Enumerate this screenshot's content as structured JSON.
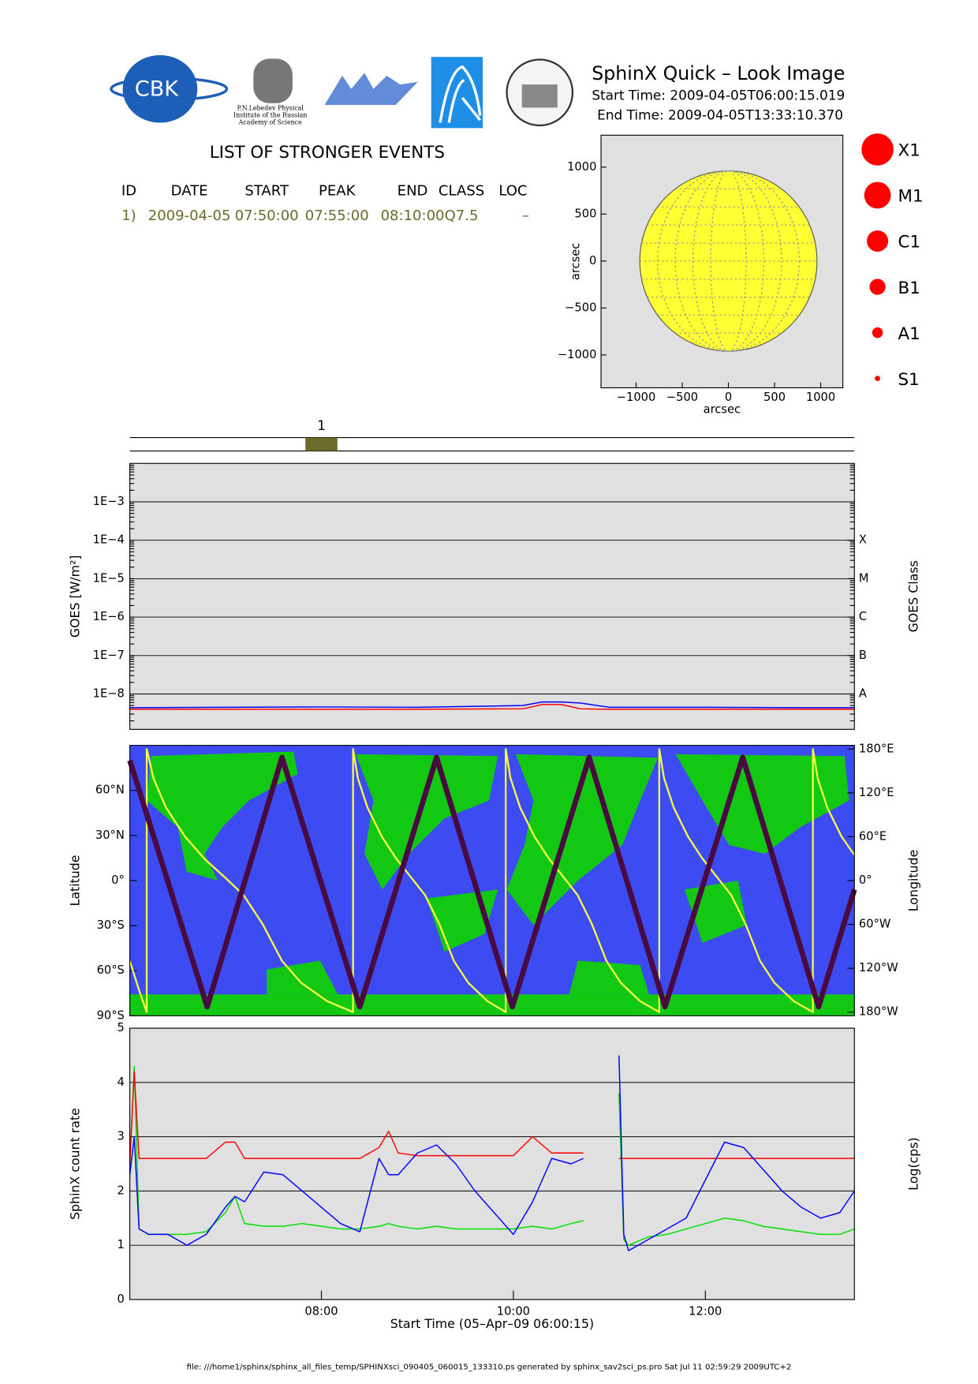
{
  "header": {
    "title": "SphinX Quick – Look Image",
    "start": "Start Time: 2009-04-05T06:00:15.019",
    "end": "End Time: 2009-04-05T13:33:10.370",
    "logo_cbk": "CBK",
    "lebedev": [
      "P.N.Lebedev Physical",
      "Institute of the Russian",
      "Academy of Science"
    ]
  },
  "events": {
    "title": "LIST OF STRONGER EVENTS",
    "header": [
      "ID",
      "DATE",
      "START",
      "PEAK",
      "END",
      "CLASS",
      "LOC"
    ],
    "rows": [
      [
        "1)",
        "2009-04-05",
        "07:50:00",
        "07:55:00",
        "08:10:00",
        "Q7.5",
        "–"
      ]
    ],
    "markers": [
      "1"
    ],
    "color": "#6b6b2a"
  },
  "footer": "file: ///home1/sphinx/sphinx_all_files_temp/SPHINXsci_090405_060015_133310.ps generated by sphinx_sav2sci_ps.pro Sat Jul 11 02:59:29 2009UTC+2",
  "chart_data": [
    {
      "type": "disk",
      "xlabel": "arcsec",
      "ylabel": "arcsec",
      "xlim": [
        -1380,
        1240
      ],
      "ylim": [
        -1350,
        1340
      ],
      "xticks": [
        {
          "value": -1000,
          "label": "−1000"
        },
        {
          "value": -500,
          "label": "−500"
        },
        0,
        500,
        1000
      ],
      "yticks": [
        {
          "value": -1000,
          "label": "−1000"
        },
        {
          "value": -500,
          "label": "−500"
        },
        0,
        500,
        1000
      ],
      "disk_radius": 960,
      "color": "#ffff33",
      "legend": [
        "X1",
        "M1",
        "C1",
        "B1",
        "A1",
        "S1"
      ],
      "legend_color": "#ff0000"
    },
    {
      "type": "line",
      "ylabel": "GOES [W/m²]",
      "y2label": "GOES Class",
      "log_y": true,
      "grid": true,
      "xlim": [
        6.004,
        13.553
      ],
      "ylim": [
        1.2e-09,
        0.01
      ],
      "y2lim": [
        1.2e-09,
        0.01
      ],
      "yticks": [
        {
          "value": 0.001,
          "label": "1E−3"
        },
        {
          "value": 0.0001,
          "label": "1E−4"
        },
        {
          "value": 1e-05,
          "label": "1E−5"
        },
        {
          "value": 1e-06,
          "label": "1E−6"
        },
        {
          "value": 1e-07,
          "label": "1E−7"
        },
        {
          "value": 1e-08,
          "label": "1E−8"
        }
      ],
      "y2ticks": [
        {
          "value": 0.0001,
          "label": "X"
        },
        {
          "value": 1e-05,
          "label": "M"
        },
        {
          "value": 1e-06,
          "label": "C"
        },
        {
          "value": 1e-07,
          "label": "B"
        },
        {
          "value": 1e-08,
          "label": "A"
        }
      ],
      "x": [
        6.004,
        7,
        8,
        9,
        10.1,
        10.3,
        10.5,
        10.7,
        11,
        12,
        13,
        13.553
      ],
      "series": [
        {
          "color": "#0000ff",
          "values": [
            4.4e-09,
            4.5e-09,
            4.6e-09,
            4.5e-09,
            5e-09,
            6.2e-09,
            6.2e-09,
            5.8e-09,
            4.5e-09,
            4.5e-09,
            4.4e-09,
            4.4e-09
          ]
        },
        {
          "color": "#ff0000",
          "values": [
            4e-09,
            4e-09,
            4e-09,
            4e-09,
            4.1e-09,
            5.3e-09,
            5.3e-09,
            4.1e-09,
            4e-09,
            4e-09,
            4e-09,
            4e-09
          ]
        }
      ]
    },
    {
      "type": "line",
      "ylabel": "Latitude",
      "y2label": "Longitude",
      "xlim": [
        6.004,
        13.553
      ],
      "ylim": [
        -90,
        90
      ],
      "y2lim": [
        -185,
        185
      ],
      "yticks": [
        {
          "value": 60,
          "label": "60°N"
        },
        {
          "value": 30,
          "label": "30°N"
        },
        {
          "value": 0,
          "label": "0°"
        },
        {
          "value": -30,
          "label": "30°S"
        },
        {
          "value": -60,
          "label": "60°S"
        },
        {
          "value": -90,
          "label": "90°S"
        }
      ],
      "y2ticks": [
        {
          "value": 180,
          "label": "180°E"
        },
        {
          "value": 120,
          "label": "120°E"
        },
        {
          "value": 60,
          "label": "60°E"
        },
        {
          "value": 0,
          "label": "0°"
        },
        {
          "value": -60,
          "label": "60°W"
        },
        {
          "value": -120,
          "label": "120°W"
        },
        {
          "value": -180,
          "label": "180°W"
        }
      ],
      "series": [
        {
          "color": "#ffff40",
          "axis": "y2",
          "x": [
            6.004,
            6.1,
            6.18,
            6.18,
            6.25,
            6.38,
            6.58,
            6.78,
            6.99,
            7.19,
            7.39,
            7.59,
            7.79,
            8.06,
            8.33,
            8.33,
            8.38,
            8.48,
            8.63,
            8.78,
            8.93,
            9.08,
            9.23,
            9.38,
            9.53,
            9.73,
            9.92,
            9.92,
            9.97,
            10.07,
            10.22,
            10.37,
            10.52,
            10.67,
            10.82,
            10.97,
            11.12,
            11.32,
            11.52,
            11.52,
            11.57,
            11.67,
            11.82,
            11.97,
            12.12,
            12.27,
            12.42,
            12.57,
            12.72,
            12.92,
            13.12,
            13.12,
            13.17,
            13.27,
            13.42,
            13.553
          ],
          "values": [
            -110,
            -150,
            -180,
            180,
            140,
            100,
            60,
            30,
            5,
            -20,
            -60,
            -110,
            -140,
            -165,
            -180,
            180,
            140,
            100,
            60,
            30,
            5,
            -20,
            -60,
            -110,
            -140,
            -165,
            -180,
            180,
            140,
            100,
            60,
            30,
            5,
            -20,
            -60,
            -110,
            -140,
            -165,
            -180,
            180,
            140,
            100,
            60,
            30,
            5,
            -20,
            -60,
            -110,
            -140,
            -165,
            -180,
            180,
            140,
            100,
            60,
            35
          ]
        },
        {
          "color": "#4a0a40",
          "x": [
            6.004,
            6.81,
            7.59,
            8.4,
            9.2,
            9.99,
            10.79,
            11.58,
            12.39,
            13.18,
            13.553
          ],
          "values": [
            80,
            -84,
            82,
            -84,
            82,
            -84,
            82,
            -84,
            82,
            -84,
            -6
          ]
        }
      ]
    },
    {
      "type": "line",
      "ylabel": "SphinX count rate",
      "y2label": "Log(cps)",
      "xlabel": "Start Time (05–Apr–09 06:00:15)",
      "grid": true,
      "xlim": [
        6.004,
        13.553
      ],
      "ylim": [
        0,
        5
      ],
      "yticks": [
        0,
        1,
        2,
        3,
        4,
        5
      ],
      "xticks": [
        {
          "value": 8,
          "label": "08:00"
        },
        {
          "value": 10,
          "label": "10:00"
        },
        {
          "value": 12,
          "label": "12:00"
        }
      ],
      "x": [
        6.004,
        6.05,
        6.1,
        6.2,
        6.4,
        6.6,
        6.8,
        7.0,
        7.1,
        7.2,
        7.4,
        7.6,
        7.8,
        8.0,
        8.2,
        8.4,
        8.6,
        8.7,
        8.8,
        9.0,
        9.2,
        9.4,
        9.6,
        9.8,
        10.0,
        10.2,
        10.4,
        10.6,
        10.73,
        10.9,
        11.1,
        11.15,
        11.2,
        11.4,
        11.6,
        11.8,
        12.0,
        12.2,
        12.4,
        12.6,
        12.8,
        13.0,
        13.2,
        13.4,
        13.553
      ],
      "series": [
        {
          "color": "#00e000",
          "values": [
            2.5,
            4.3,
            1.3,
            1.2,
            1.2,
            1.2,
            1.25,
            1.6,
            1.9,
            1.4,
            1.35,
            1.35,
            1.4,
            1.35,
            1.3,
            1.3,
            1.35,
            1.4,
            1.35,
            1.3,
            1.35,
            1.3,
            1.3,
            1.3,
            1.3,
            1.35,
            1.3,
            1.4,
            1.45,
            null,
            3.8,
            1.1,
            1.0,
            1.15,
            1.2,
            1.3,
            1.4,
            1.5,
            1.45,
            1.35,
            1.3,
            1.25,
            1.2,
            1.2,
            1.3
          ]
        },
        {
          "color": "#ff0000",
          "values": [
            2.5,
            4.2,
            2.6,
            2.6,
            2.6,
            2.6,
            2.6,
            2.9,
            2.9,
            2.6,
            2.6,
            2.6,
            2.6,
            2.6,
            2.6,
            2.6,
            2.8,
            3.1,
            2.7,
            2.65,
            2.65,
            2.65,
            2.65,
            2.65,
            2.65,
            3.0,
            2.7,
            2.7,
            2.7,
            null,
            2.6,
            2.6,
            2.6,
            2.6,
            2.6,
            2.6,
            2.6,
            2.6,
            2.6,
            2.6,
            2.6,
            2.6,
            2.6,
            2.6,
            2.6
          ]
        },
        {
          "color": "#0000ff",
          "values": [
            2.3,
            3.0,
            1.3,
            1.2,
            1.2,
            1.0,
            1.2,
            1.7,
            1.9,
            1.8,
            2.35,
            2.3,
            2.0,
            1.7,
            1.4,
            1.25,
            2.6,
            2.3,
            2.3,
            2.7,
            2.85,
            2.5,
            2.0,
            1.6,
            1.2,
            1.8,
            2.6,
            2.5,
            2.6,
            null,
            4.5,
            1.2,
            0.9,
            1.1,
            1.3,
            1.5,
            2.2,
            2.9,
            2.8,
            2.4,
            2.0,
            1.7,
            1.5,
            1.6,
            2.0
          ]
        }
      ]
    }
  ]
}
